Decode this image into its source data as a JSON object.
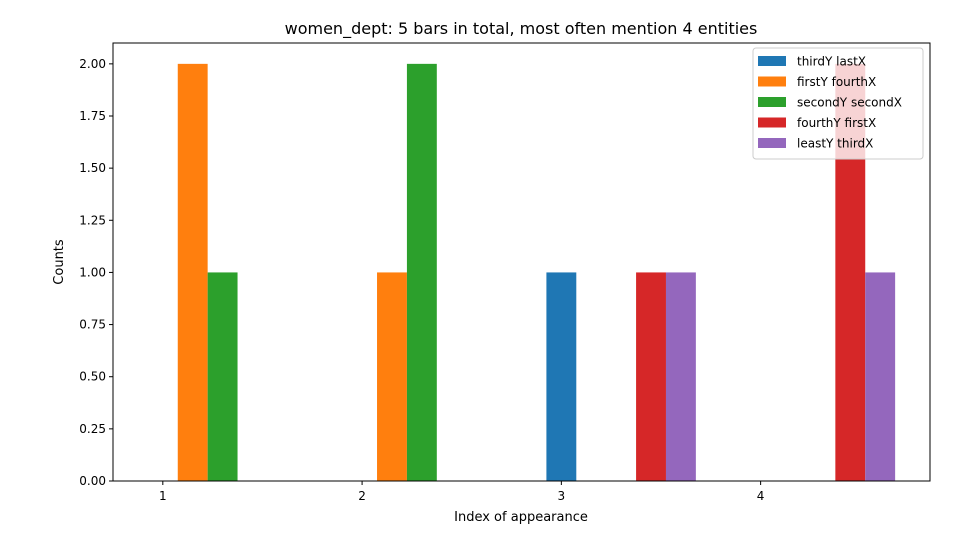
{
  "chart_data": {
    "type": "bar",
    "title": "women_dept: 5 bars in total, most often mention  4 entities",
    "xlabel": "Index of appearance",
    "ylabel": "Counts",
    "xlim": [
      0.75,
      4.85
    ],
    "ylim": [
      0,
      2.1
    ],
    "xticks": [
      "1",
      "2",
      "3",
      "4"
    ],
    "yticks": [
      "0.00",
      "0.25",
      "0.50",
      "0.75",
      "1.00",
      "1.25",
      "1.50",
      "1.75",
      "2.00"
    ],
    "legend_position": "top-right",
    "series": [
      {
        "name": "thirdY lastX",
        "color": "#1f77b4",
        "points": [
          {
            "x": 3.0,
            "y": 1
          }
        ]
      },
      {
        "name": "firstY fourthX",
        "color": "#ff7f0e",
        "points": [
          {
            "x": 1.15,
            "y": 2
          },
          {
            "x": 2.15,
            "y": 1
          }
        ]
      },
      {
        "name": "secondY secondX",
        "color": "#2ca02c",
        "points": [
          {
            "x": 1.3,
            "y": 1
          },
          {
            "x": 2.3,
            "y": 2
          }
        ]
      },
      {
        "name": "fourthY firstX",
        "color": "#d62728",
        "points": [
          {
            "x": 3.45,
            "y": 1
          },
          {
            "x": 4.45,
            "y": 2
          }
        ]
      },
      {
        "name": "leastY thirdX",
        "color": "#9467bd",
        "points": [
          {
            "x": 3.6,
            "y": 1
          },
          {
            "x": 4.6,
            "y": 1
          }
        ]
      }
    ]
  }
}
